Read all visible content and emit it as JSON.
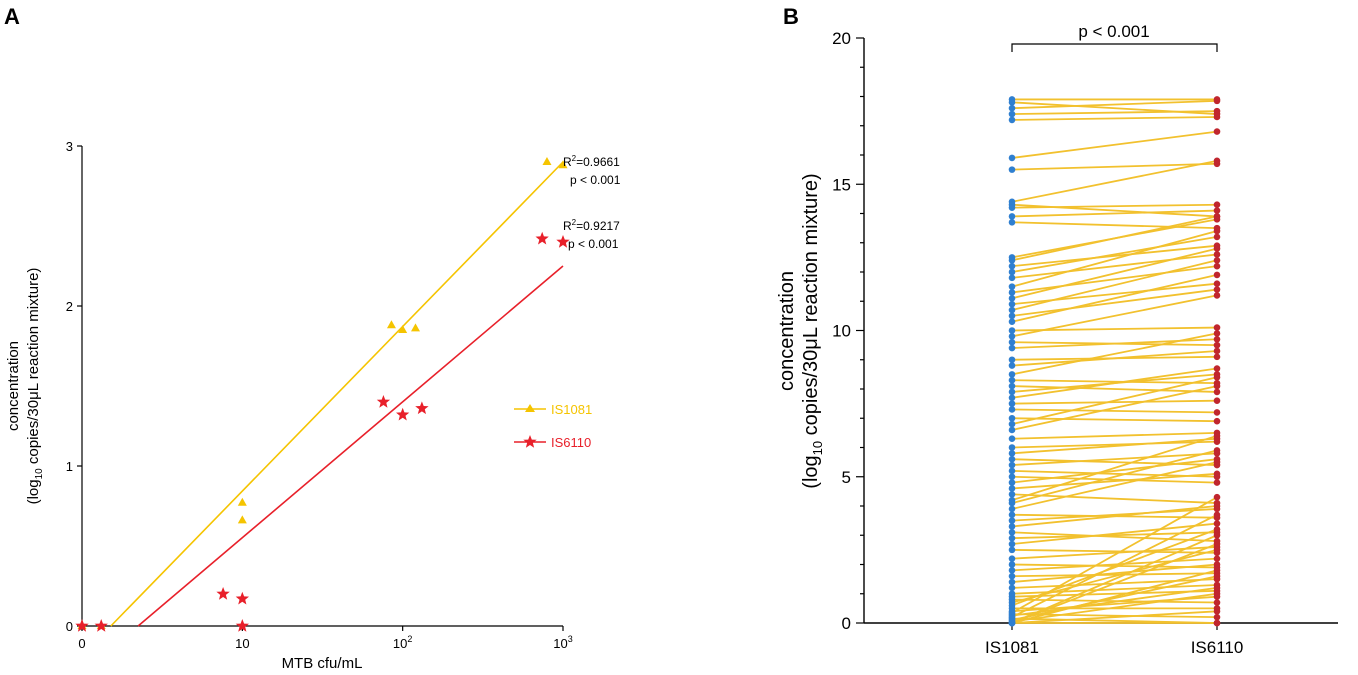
{
  "chart_data": [
    {
      "panel": "A",
      "type": "scatter",
      "xlabel": "MTB cfu/mL",
      "ylabel_line1": "concentration",
      "ylabel_line2": "(log10 copies/30μL reaction mixture)",
      "ylabel_base": "(log",
      "ylabel_sub": "10",
      "ylabel_rest": " copies/30",
      "ylabel_mu": "μ",
      "ylabel_end": "L reaction mixture)",
      "x_scale": "log10",
      "x_ticks": [
        {
          "pos": 0,
          "base": "0",
          "exp": ""
        },
        {
          "pos": 1,
          "base": "10",
          "exp": ""
        },
        {
          "pos": 2,
          "base": "10",
          "exp": "2"
        },
        {
          "pos": 3,
          "base": "10",
          "exp": "3"
        }
      ],
      "xlim": [
        0,
        3
      ],
      "ylim": [
        0,
        3
      ],
      "y_ticks": [
        "0",
        "1",
        "2",
        "3"
      ],
      "series": [
        {
          "name": "IS1081",
          "color": "#F5C400",
          "marker": "triangle",
          "points": [
            [
              0.0,
              0.0
            ],
            [
              0.12,
              0.0
            ],
            [
              1.0,
              0.77
            ],
            [
              1.0,
              0.66
            ],
            [
              1.93,
              1.88
            ],
            [
              2.0,
              1.85
            ],
            [
              2.08,
              1.86
            ],
            [
              2.9,
              2.9
            ],
            [
              3.0,
              2.88
            ]
          ],
          "fit": [
            [
              0.18,
              0.0
            ],
            [
              3.0,
              2.9
            ]
          ],
          "r2_label": "R",
          "r2_sup": "2",
          "r2_value": "=0.9661",
          "p_label": "p < 0.001"
        },
        {
          "name": "IS6110",
          "color": "#E8202A",
          "marker": "star",
          "points": [
            [
              0.0,
              0.0
            ],
            [
              0.12,
              0.0
            ],
            [
              0.88,
              0.2
            ],
            [
              1.0,
              0.17
            ],
            [
              1.0,
              0.0
            ],
            [
              1.88,
              1.4
            ],
            [
              2.0,
              1.32
            ],
            [
              2.12,
              1.36
            ],
            [
              2.87,
              2.42
            ],
            [
              3.0,
              2.4
            ]
          ],
          "fit": [
            [
              0.35,
              0.0
            ],
            [
              3.0,
              2.25
            ]
          ],
          "r2_label": "R",
          "r2_sup": "2",
          "r2_value": "=0.9217",
          "p_label": "p < 0.001"
        }
      ],
      "legend": [
        "IS1081",
        "IS6110"
      ]
    },
    {
      "panel": "B",
      "type": "paired-line",
      "categories": [
        "IS1081",
        "IS6110"
      ],
      "ylim": [
        0,
        20
      ],
      "y_ticks": [
        "0",
        "5",
        "10",
        "15",
        "20"
      ],
      "ylabel_line1": "concentration",
      "ylabel_line2": "(log10 copies/30μL reaction mixture)",
      "ylabel_base": "(log",
      "ylabel_sub": "10",
      "ylabel_rest": " copies/30",
      "ylabel_mu": "μ",
      "ylabel_end": "L reaction mixture)",
      "significance": "p < 0.001",
      "line_color": "#F2C12E",
      "left_color": "#2F7FD0",
      "right_color": "#C0262E",
      "pairs": [
        [
          17.9,
          17.9
        ],
        [
          17.8,
          17.4
        ],
        [
          17.6,
          17.85
        ],
        [
          17.4,
          17.5
        ],
        [
          17.2,
          17.3
        ],
        [
          15.9,
          16.8
        ],
        [
          15.5,
          15.7
        ],
        [
          14.4,
          15.8
        ],
        [
          14.3,
          13.9
        ],
        [
          14.2,
          14.3
        ],
        [
          13.9,
          14.1
        ],
        [
          13.7,
          13.5
        ],
        [
          12.5,
          13.8
        ],
        [
          12.4,
          13.9
        ],
        [
          12.2,
          12.9
        ],
        [
          12.0,
          13.2
        ],
        [
          11.8,
          12.6
        ],
        [
          11.5,
          13.4
        ],
        [
          11.3,
          12.2
        ],
        [
          11.1,
          12.8
        ],
        [
          10.9,
          11.6
        ],
        [
          10.7,
          12.4
        ],
        [
          10.5,
          11.4
        ],
        [
          10.3,
          11.9
        ],
        [
          10.0,
          10.1
        ],
        [
          9.8,
          11.2
        ],
        [
          9.6,
          9.5
        ],
        [
          9.4,
          9.7
        ],
        [
          9.0,
          9.1
        ],
        [
          8.8,
          9.3
        ],
        [
          8.5,
          9.9
        ],
        [
          8.3,
          8.2
        ],
        [
          8.1,
          7.9
        ],
        [
          7.9,
          8.5
        ],
        [
          7.7,
          8.7
        ],
        [
          7.5,
          7.6
        ],
        [
          7.3,
          7.2
        ],
        [
          7.0,
          6.9
        ],
        [
          6.8,
          8.4
        ],
        [
          6.6,
          8.1
        ],
        [
          6.3,
          6.5
        ],
        [
          6.0,
          6.2
        ],
        [
          5.8,
          6.3
        ],
        [
          5.6,
          5.4
        ],
        [
          5.4,
          5.8
        ],
        [
          5.2,
          5.0
        ],
        [
          5.0,
          4.8
        ],
        [
          4.8,
          5.6
        ],
        [
          4.6,
          5.1
        ],
        [
          4.4,
          4.1
        ],
        [
          4.2,
          6.4
        ],
        [
          4.1,
          5.9
        ],
        [
          3.9,
          5.5
        ],
        [
          3.7,
          3.6
        ],
        [
          3.5,
          3.9
        ],
        [
          3.3,
          4.0
        ],
        [
          3.1,
          2.8
        ],
        [
          2.9,
          3.1
        ],
        [
          2.7,
          3.4
        ],
        [
          2.5,
          2.4
        ],
        [
          2.2,
          2.6
        ],
        [
          2.0,
          1.9
        ],
        [
          1.8,
          2.2
        ],
        [
          1.6,
          1.7
        ],
        [
          1.4,
          2.0
        ],
        [
          1.2,
          1.5
        ],
        [
          1.0,
          1.3
        ],
        [
          0.9,
          1.1
        ],
        [
          0.8,
          0.7
        ],
        [
          0.7,
          2.5
        ],
        [
          0.5,
          0.5
        ],
        [
          0.4,
          0.9
        ],
        [
          0.3,
          0.2
        ],
        [
          0.15,
          0.0
        ],
        [
          0.05,
          1.0
        ],
        [
          0.0,
          1.8
        ],
        [
          0.0,
          0.0
        ],
        [
          0.0,
          2.7
        ],
        [
          0.0,
          3.0
        ],
        [
          0.0,
          0.4
        ],
        [
          0.2,
          3.7
        ],
        [
          0.1,
          1.6
        ],
        [
          0.25,
          1.2
        ],
        [
          0.35,
          4.3
        ],
        [
          0.6,
          3.2
        ]
      ]
    }
  ],
  "panel_labels": {
    "a": "A",
    "b": "B"
  }
}
